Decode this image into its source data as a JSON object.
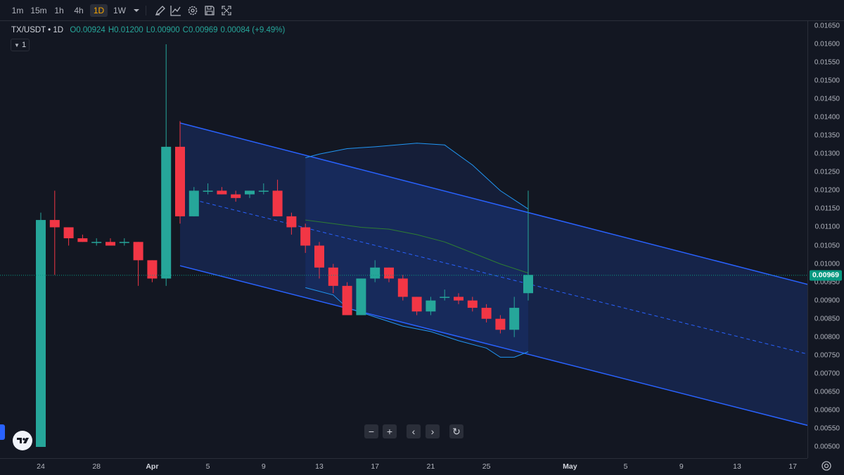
{
  "toolbar": {
    "timeframes": [
      {
        "label": "1m",
        "active": false
      },
      {
        "label": "15m",
        "active": false
      },
      {
        "label": "1h",
        "active": false
      },
      {
        "label": "4h",
        "active": false
      },
      {
        "label": "1D",
        "active": true
      },
      {
        "label": "1W",
        "active": false
      }
    ],
    "tools": [
      "chevron-down-icon",
      "draw-icon",
      "indicators-icon",
      "settings-icon",
      "save-icon",
      "fullscreen-icon"
    ]
  },
  "legend": {
    "symbol": "TX/USDT • 1D",
    "open": "O0.00924",
    "high": "H0.01200",
    "low": "L0.00900",
    "close": "C0.00969",
    "change": "0.00084 (+9.49%)"
  },
  "indicator_toggle": {
    "label": "1"
  },
  "price_axis": {
    "labels": [
      "0.01650",
      "0.01600",
      "0.01550",
      "0.01500",
      "0.01450",
      "0.01400",
      "0.01350",
      "0.01300",
      "0.01250",
      "0.01200",
      "0.01150",
      "0.01100",
      "0.01050",
      "0.01000",
      "0.00950",
      "0.00900",
      "0.00850",
      "0.00800",
      "0.00750",
      "0.00700",
      "0.00650",
      "0.00600",
      "0.00550",
      "0.00500"
    ],
    "current_price": "0.00969"
  },
  "time_axis": {
    "labels": [
      "24",
      "28",
      "Apr",
      "5",
      "9",
      "13",
      "17",
      "21",
      "25",
      "May",
      "5",
      "9",
      "13",
      "17"
    ]
  },
  "nav_controls": [
    "−",
    "+",
    "‹",
    "›",
    "↻"
  ],
  "colors": {
    "up": "#26a69a",
    "down": "#f23645",
    "channel": "#2962ff",
    "background": "#131722"
  },
  "chart_data": {
    "type": "candlestick",
    "title": "TX/USDT • 1D",
    "ylim": [
      0.0049,
      0.0166
    ],
    "candles": [
      {
        "date": "Mar 24",
        "o": 0.005,
        "h": 0.0114,
        "l": 0.005,
        "c": 0.0112
      },
      {
        "date": "Mar 25",
        "o": 0.0112,
        "h": 0.012,
        "l": 0.0097,
        "c": 0.011
      },
      {
        "date": "Mar 26",
        "o": 0.011,
        "h": 0.011,
        "l": 0.0105,
        "c": 0.0107
      },
      {
        "date": "Mar 27",
        "o": 0.0107,
        "h": 0.0108,
        "l": 0.0106,
        "c": 0.0106
      },
      {
        "date": "Mar 28",
        "o": 0.0106,
        "h": 0.0107,
        "l": 0.0105,
        "c": 0.0106
      },
      {
        "date": "Mar 29",
        "o": 0.0106,
        "h": 0.0107,
        "l": 0.0105,
        "c": 0.0105
      },
      {
        "date": "Mar 30",
        "o": 0.0106,
        "h": 0.0107,
        "l": 0.0105,
        "c": 0.0106
      },
      {
        "date": "Mar 31",
        "o": 0.0106,
        "h": 0.0106,
        "l": 0.0094,
        "c": 0.0101
      },
      {
        "date": "Apr 1",
        "o": 0.0101,
        "h": 0.0101,
        "l": 0.0095,
        "c": 0.0096
      },
      {
        "date": "Apr 2",
        "o": 0.0096,
        "h": 0.016,
        "l": 0.0094,
        "c": 0.0132
      },
      {
        "date": "Apr 3",
        "o": 0.0132,
        "h": 0.0139,
        "l": 0.0111,
        "c": 0.0113
      },
      {
        "date": "Apr 4",
        "o": 0.0113,
        "h": 0.0121,
        "l": 0.0113,
        "c": 0.012
      },
      {
        "date": "Apr 5",
        "o": 0.012,
        "h": 0.0122,
        "l": 0.0119,
        "c": 0.012
      },
      {
        "date": "Apr 6",
        "o": 0.012,
        "h": 0.0121,
        "l": 0.0119,
        "c": 0.0119
      },
      {
        "date": "Apr 7",
        "o": 0.0119,
        "h": 0.012,
        "l": 0.0117,
        "c": 0.0118
      },
      {
        "date": "Apr 8",
        "o": 0.0119,
        "h": 0.012,
        "l": 0.0118,
        "c": 0.012
      },
      {
        "date": "Apr 9",
        "o": 0.012,
        "h": 0.0122,
        "l": 0.0119,
        "c": 0.012
      },
      {
        "date": "Apr 10",
        "o": 0.012,
        "h": 0.0123,
        "l": 0.0113,
        "c": 0.0113
      },
      {
        "date": "Apr 11",
        "o": 0.0113,
        "h": 0.0114,
        "l": 0.0108,
        "c": 0.011
      },
      {
        "date": "Apr 12",
        "o": 0.011,
        "h": 0.0111,
        "l": 0.0103,
        "c": 0.0105
      },
      {
        "date": "Apr 13",
        "o": 0.0105,
        "h": 0.0106,
        "l": 0.0096,
        "c": 0.0099
      },
      {
        "date": "Apr 14",
        "o": 0.0099,
        "h": 0.01,
        "l": 0.0092,
        "c": 0.0094
      },
      {
        "date": "Apr 15",
        "o": 0.0094,
        "h": 0.0095,
        "l": 0.0086,
        "c": 0.0086
      },
      {
        "date": "Apr 16",
        "o": 0.0086,
        "h": 0.0096,
        "l": 0.0086,
        "c": 0.0096
      },
      {
        "date": "Apr 17",
        "o": 0.0096,
        "h": 0.0101,
        "l": 0.0095,
        "c": 0.0099
      },
      {
        "date": "Apr 18",
        "o": 0.0099,
        "h": 0.0099,
        "l": 0.0095,
        "c": 0.0096
      },
      {
        "date": "Apr 19",
        "o": 0.0096,
        "h": 0.0097,
        "l": 0.009,
        "c": 0.0091
      },
      {
        "date": "Apr 20",
        "o": 0.0091,
        "h": 0.0091,
        "l": 0.0086,
        "c": 0.0087
      },
      {
        "date": "Apr 21",
        "o": 0.0087,
        "h": 0.0091,
        "l": 0.0086,
        "c": 0.009
      },
      {
        "date": "Apr 22",
        "o": 0.0091,
        "h": 0.0093,
        "l": 0.009,
        "c": 0.0091
      },
      {
        "date": "Apr 23",
        "o": 0.0091,
        "h": 0.0092,
        "l": 0.0089,
        "c": 0.009
      },
      {
        "date": "Apr 24",
        "o": 0.009,
        "h": 0.0091,
        "l": 0.0087,
        "c": 0.0088
      },
      {
        "date": "Apr 25",
        "o": 0.0088,
        "h": 0.0089,
        "l": 0.0084,
        "c": 0.0085
      },
      {
        "date": "Apr 26",
        "o": 0.0085,
        "h": 0.0086,
        "l": 0.0081,
        "c": 0.0082
      },
      {
        "date": "Apr 27",
        "o": 0.0082,
        "h": 0.0091,
        "l": 0.008,
        "c": 0.0088
      },
      {
        "date": "Apr 28",
        "o": 0.0092,
        "h": 0.012,
        "l": 0.009,
        "c": 0.0097
      }
    ],
    "channel": {
      "upper": [
        [
          "Apr 3",
          0.01385
        ],
        [
          "May 20",
          0.00925
        ]
      ],
      "middle": [
        [
          "Apr 4",
          0.01175
        ],
        [
          "May 20",
          0.00735
        ]
      ],
      "lower": [
        [
          "Apr 3",
          0.00995
        ],
        [
          "May 20",
          0.0054
        ]
      ]
    },
    "bollinger": {
      "upper": [
        [
          "Apr 12",
          0.0129
        ],
        [
          "Apr 13",
          0.013
        ],
        [
          "Apr 15",
          0.01315
        ],
        [
          "Apr 17",
          0.0132
        ],
        [
          "Apr 20",
          0.0133
        ],
        [
          "Apr 22",
          0.01325
        ],
        [
          "Apr 24",
          0.0127
        ],
        [
          "Apr 26",
          0.012
        ],
        [
          "Apr 28",
          0.0115
        ]
      ],
      "basis": [
        [
          "Apr 12",
          0.0112
        ],
        [
          "Apr 14",
          0.0111
        ],
        [
          "Apr 16",
          0.011
        ],
        [
          "Apr 18",
          0.01095
        ],
        [
          "Apr 20",
          0.0108
        ],
        [
          "Apr 22",
          0.0106
        ],
        [
          "Apr 24",
          0.0103
        ],
        [
          "Apr 26",
          0.01
        ],
        [
          "Apr 28",
          0.00975
        ]
      ],
      "lower": [
        [
          "Apr 12",
          0.00935
        ],
        [
          "Apr 14",
          0.00915
        ],
        [
          "Apr 15",
          0.0088
        ],
        [
          "Apr 17",
          0.00855
        ],
        [
          "Apr 19",
          0.0083
        ],
        [
          "Apr 21",
          0.00815
        ],
        [
          "Apr 23",
          0.0079
        ],
        [
          "Apr 25",
          0.0077
        ],
        [
          "Apr 26",
          0.00745
        ],
        [
          "Apr 27",
          0.00745
        ],
        [
          "Apr 28",
          0.0076
        ]
      ]
    }
  }
}
